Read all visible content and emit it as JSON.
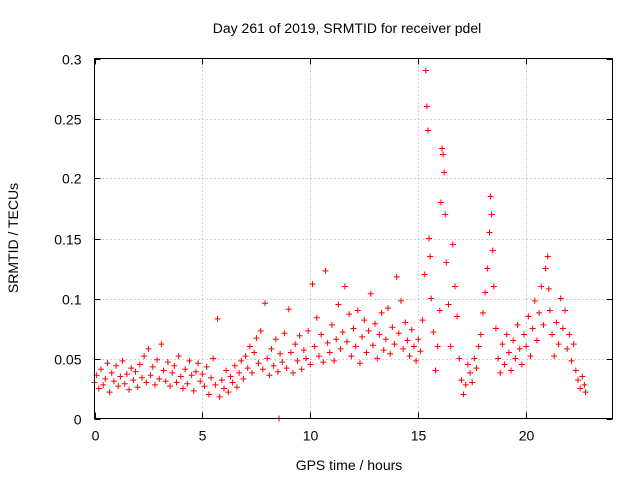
{
  "chart_data": {
    "type": "scatter",
    "title": "Day 261 of 2019, SRMTID for receiver pdel",
    "xlabel": "GPS time / hours",
    "ylabel": "SRMTID / TECUs",
    "xlim": [
      0,
      24
    ],
    "ylim": [
      0,
      0.3
    ],
    "x_ticks": [
      0,
      5,
      10,
      15,
      20
    ],
    "x_tick_labels": [
      "0",
      "5",
      "10",
      "15",
      "20"
    ],
    "y_ticks": [
      0,
      0.05,
      0.1,
      0.15,
      0.2,
      0.25,
      0.3
    ],
    "y_tick_labels": [
      "0",
      "0.05",
      "0.1",
      "0.15",
      "0.2",
      "0.25",
      "0.3"
    ],
    "grid": true,
    "marker": "+",
    "color": "#ff0000",
    "series": [
      {
        "name": "SRMTID",
        "points": [
          [
            0.0,
            0.03
          ],
          [
            0.1,
            0.036
          ],
          [
            0.2,
            0.025
          ],
          [
            0.3,
            0.041
          ],
          [
            0.4,
            0.028
          ],
          [
            0.5,
            0.033
          ],
          [
            0.6,
            0.046
          ],
          [
            0.7,
            0.022
          ],
          [
            0.8,
            0.038
          ],
          [
            0.9,
            0.031
          ],
          [
            1.0,
            0.044
          ],
          [
            1.1,
            0.027
          ],
          [
            1.2,
            0.035
          ],
          [
            1.3,
            0.048
          ],
          [
            1.4,
            0.029
          ],
          [
            1.5,
            0.037
          ],
          [
            1.6,
            0.024
          ],
          [
            1.7,
            0.042
          ],
          [
            1.8,
            0.032
          ],
          [
            1.9,
            0.039
          ],
          [
            2.0,
            0.026
          ],
          [
            2.1,
            0.045
          ],
          [
            2.2,
            0.034
          ],
          [
            2.3,
            0.052
          ],
          [
            2.4,
            0.03
          ],
          [
            2.5,
            0.058
          ],
          [
            2.6,
            0.036
          ],
          [
            2.7,
            0.043
          ],
          [
            2.8,
            0.028
          ],
          [
            2.9,
            0.049
          ],
          [
            3.0,
            0.033
          ],
          [
            3.1,
            0.062
          ],
          [
            3.2,
            0.04
          ],
          [
            3.3,
            0.031
          ],
          [
            3.4,
            0.047
          ],
          [
            3.5,
            0.027
          ],
          [
            3.6,
            0.038
          ],
          [
            3.7,
            0.044
          ],
          [
            3.8,
            0.03
          ],
          [
            3.9,
            0.052
          ],
          [
            4.0,
            0.035
          ],
          [
            4.1,
            0.025
          ],
          [
            4.2,
            0.041
          ],
          [
            4.3,
            0.029
          ],
          [
            4.4,
            0.048
          ],
          [
            4.5,
            0.036
          ],
          [
            4.6,
            0.023
          ],
          [
            4.7,
            0.039
          ],
          [
            4.8,
            0.046
          ],
          [
            4.9,
            0.031
          ],
          [
            5.0,
            0.037
          ],
          [
            5.1,
            0.027
          ],
          [
            5.2,
            0.043
          ],
          [
            5.3,
            0.02
          ],
          [
            5.4,
            0.034
          ],
          [
            5.5,
            0.05
          ],
          [
            5.6,
            0.028
          ],
          [
            5.7,
            0.083
          ],
          [
            5.8,
            0.018
          ],
          [
            5.9,
            0.032
          ],
          [
            6.0,
            0.025
          ],
          [
            6.1,
            0.04
          ],
          [
            6.2,
            0.022
          ],
          [
            6.3,
            0.035
          ],
          [
            6.4,
            0.03
          ],
          [
            6.5,
            0.044
          ],
          [
            6.6,
            0.026
          ],
          [
            6.7,
            0.038
          ],
          [
            6.8,
            0.048
          ],
          [
            6.9,
            0.033
          ],
          [
            7.0,
            0.052
          ],
          [
            7.1,
            0.042
          ],
          [
            7.2,
            0.06
          ],
          [
            7.3,
            0.038
          ],
          [
            7.4,
            0.055
          ],
          [
            7.5,
            0.067
          ],
          [
            7.6,
            0.046
          ],
          [
            7.7,
            0.073
          ],
          [
            7.8,
            0.041
          ],
          [
            7.9,
            0.096
          ],
          [
            8.0,
            0.05
          ],
          [
            8.1,
            0.036
          ],
          [
            8.2,
            0.058
          ],
          [
            8.3,
            0.044
          ],
          [
            8.4,
            0.066
          ],
          [
            8.5,
            0.039
          ],
          [
            8.55,
            0.0
          ],
          [
            8.6,
            0.054
          ],
          [
            8.7,
            0.047
          ],
          [
            8.8,
            0.071
          ],
          [
            8.9,
            0.042
          ],
          [
            9.0,
            0.091
          ],
          [
            9.1,
            0.055
          ],
          [
            9.2,
            0.038
          ],
          [
            9.3,
            0.062
          ],
          [
            9.4,
            0.048
          ],
          [
            9.5,
            0.069
          ],
          [
            9.6,
            0.041
          ],
          [
            9.7,
            0.057
          ],
          [
            9.8,
            0.05
          ],
          [
            9.9,
            0.073
          ],
          [
            10.0,
            0.045
          ],
          [
            10.1,
            0.112
          ],
          [
            10.2,
            0.06
          ],
          [
            10.3,
            0.084
          ],
          [
            10.4,
            0.052
          ],
          [
            10.5,
            0.07
          ],
          [
            10.6,
            0.047
          ],
          [
            10.7,
            0.123
          ],
          [
            10.8,
            0.063
          ],
          [
            10.9,
            0.055
          ],
          [
            11.0,
            0.078
          ],
          [
            11.1,
            0.048
          ],
          [
            11.2,
            0.066
          ],
          [
            11.3,
            0.095
          ],
          [
            11.4,
            0.058
          ],
          [
            11.5,
            0.072
          ],
          [
            11.6,
            0.11
          ],
          [
            11.7,
            0.064
          ],
          [
            11.8,
            0.087
          ],
          [
            11.9,
            0.052
          ],
          [
            12.0,
            0.075
          ],
          [
            12.1,
            0.06
          ],
          [
            12.2,
            0.09
          ],
          [
            12.3,
            0.046
          ],
          [
            12.4,
            0.068
          ],
          [
            12.5,
            0.082
          ],
          [
            12.6,
            0.055
          ],
          [
            12.7,
            0.073
          ],
          [
            12.8,
            0.104
          ],
          [
            12.9,
            0.061
          ],
          [
            13.0,
            0.079
          ],
          [
            13.1,
            0.05
          ],
          [
            13.2,
            0.07
          ],
          [
            13.3,
            0.088
          ],
          [
            13.4,
            0.057
          ],
          [
            13.5,
            0.066
          ],
          [
            13.6,
            0.092
          ],
          [
            13.7,
            0.054
          ],
          [
            13.8,
            0.076
          ],
          [
            13.9,
            0.062
          ],
          [
            14.0,
            0.118
          ],
          [
            14.1,
            0.071
          ],
          [
            14.2,
            0.098
          ],
          [
            14.3,
            0.058
          ],
          [
            14.4,
            0.08
          ],
          [
            14.5,
            0.065
          ],
          [
            14.6,
            0.052
          ],
          [
            14.7,
            0.074
          ],
          [
            14.8,
            0.06
          ],
          [
            14.9,
            0.048
          ],
          [
            15.0,
            0.066
          ],
          [
            15.1,
            0.056
          ],
          [
            15.2,
            0.082
          ],
          [
            15.3,
            0.12
          ],
          [
            15.35,
            0.29
          ],
          [
            15.4,
            0.26
          ],
          [
            15.45,
            0.24
          ],
          [
            15.5,
            0.15
          ],
          [
            15.55,
            0.135
          ],
          [
            15.6,
            0.1
          ],
          [
            15.7,
            0.072
          ],
          [
            15.8,
            0.04
          ],
          [
            15.9,
            0.06
          ],
          [
            16.0,
            0.09
          ],
          [
            16.05,
            0.18
          ],
          [
            16.1,
            0.225
          ],
          [
            16.15,
            0.22
          ],
          [
            16.2,
            0.205
          ],
          [
            16.25,
            0.17
          ],
          [
            16.3,
            0.13
          ],
          [
            16.4,
            0.095
          ],
          [
            16.5,
            0.06
          ],
          [
            16.6,
            0.145
          ],
          [
            16.7,
            0.11
          ],
          [
            16.8,
            0.085
          ],
          [
            16.9,
            0.05
          ],
          [
            17.0,
            0.032
          ],
          [
            17.1,
            0.02
          ],
          [
            17.2,
            0.028
          ],
          [
            17.3,
            0.045
          ],
          [
            17.4,
            0.038
          ],
          [
            17.5,
            0.03
          ],
          [
            17.6,
            0.05
          ],
          [
            17.7,
            0.042
          ],
          [
            17.8,
            0.06
          ],
          [
            17.9,
            0.07
          ],
          [
            18.0,
            0.088
          ],
          [
            18.1,
            0.105
          ],
          [
            18.2,
            0.125
          ],
          [
            18.3,
            0.155
          ],
          [
            18.35,
            0.185
          ],
          [
            18.4,
            0.17
          ],
          [
            18.45,
            0.14
          ],
          [
            18.5,
            0.11
          ],
          [
            18.6,
            0.075
          ],
          [
            18.7,
            0.05
          ],
          [
            18.8,
            0.038
          ],
          [
            18.9,
            0.062
          ],
          [
            19.0,
            0.045
          ],
          [
            19.1,
            0.07
          ],
          [
            19.2,
            0.055
          ],
          [
            19.3,
            0.04
          ],
          [
            19.4,
            0.065
          ],
          [
            19.5,
            0.05
          ],
          [
            19.6,
            0.078
          ],
          [
            19.7,
            0.058
          ],
          [
            19.8,
            0.045
          ],
          [
            19.9,
            0.07
          ],
          [
            20.0,
            0.06
          ],
          [
            20.1,
            0.085
          ],
          [
            20.2,
            0.052
          ],
          [
            20.3,
            0.075
          ],
          [
            20.4,
            0.098
          ],
          [
            20.5,
            0.065
          ],
          [
            20.6,
            0.088
          ],
          [
            20.7,
            0.11
          ],
          [
            20.8,
            0.078
          ],
          [
            20.9,
            0.125
          ],
          [
            21.0,
            0.135
          ],
          [
            21.05,
            0.108
          ],
          [
            21.1,
            0.09
          ],
          [
            21.2,
            0.07
          ],
          [
            21.3,
            0.052
          ],
          [
            21.4,
            0.08
          ],
          [
            21.5,
            0.062
          ],
          [
            21.6,
            0.1
          ],
          [
            21.7,
            0.075
          ],
          [
            21.8,
            0.09
          ],
          [
            21.9,
            0.058
          ],
          [
            22.0,
            0.07
          ],
          [
            22.1,
            0.048
          ],
          [
            22.2,
            0.062
          ],
          [
            22.3,
            0.04
          ],
          [
            22.4,
            0.032
          ],
          [
            22.5,
            0.025
          ],
          [
            22.6,
            0.035
          ],
          [
            22.7,
            0.028
          ],
          [
            22.75,
            0.022
          ]
        ]
      }
    ]
  }
}
